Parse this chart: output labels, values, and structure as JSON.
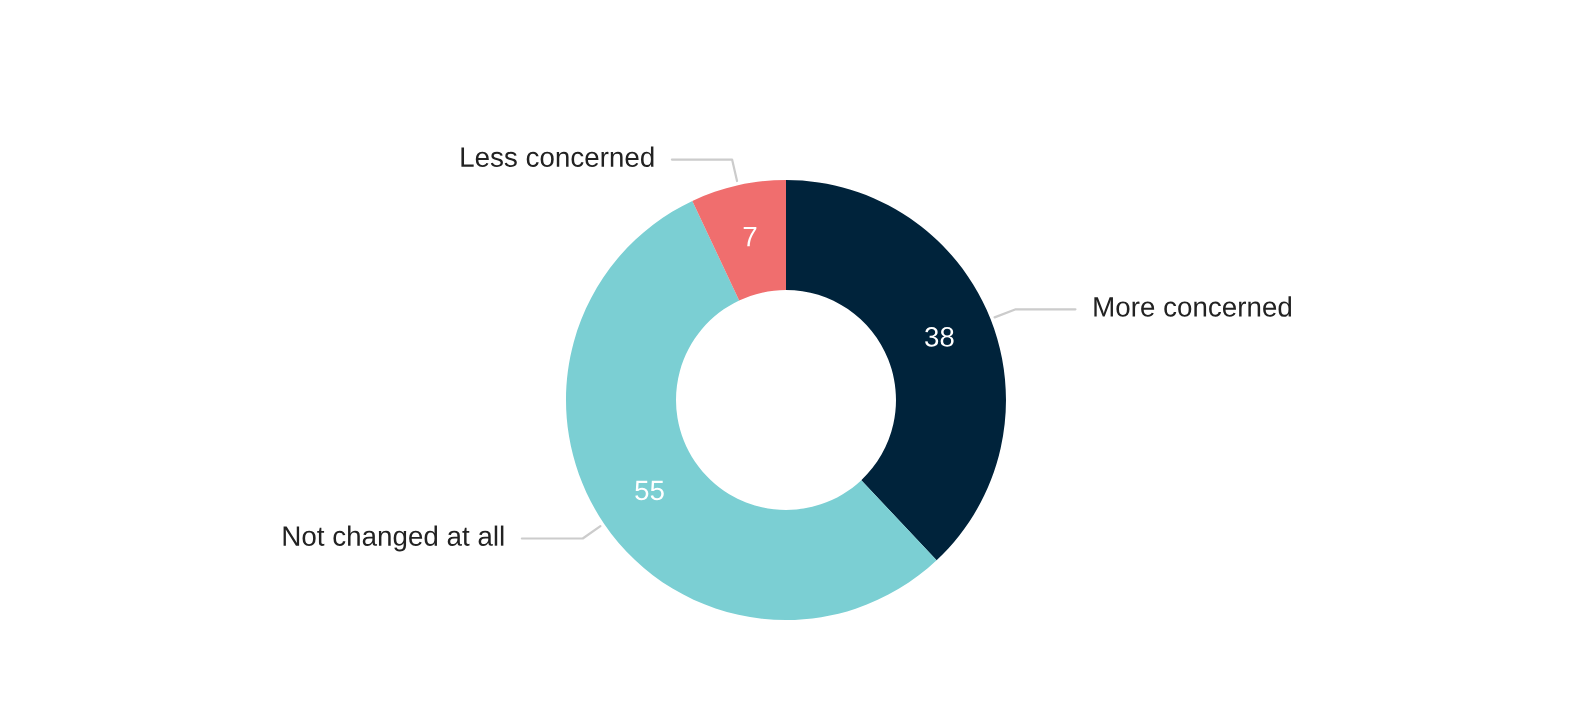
{
  "chart_data": {
    "type": "donut",
    "categories": [
      "More concerned",
      "Not changed at all",
      "Less concerned"
    ],
    "values": [
      38,
      55,
      7
    ],
    "colors": [
      "#00233b",
      "#7bcfd3",
      "#f06e6e"
    ],
    "data_labels": true,
    "legend": false
  }
}
